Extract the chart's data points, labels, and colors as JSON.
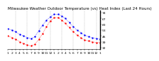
{
  "title": "Milwaukee Weather Outdoor Temperature (vs) Heat Index (Last 24 Hours)",
  "x_labels": [
    "1",
    "2",
    "3",
    "4",
    "5",
    "6",
    "7",
    "8",
    "9",
    "10",
    "11",
    "12",
    "1",
    "2",
    "3",
    "4",
    "5",
    "6",
    "7",
    "8",
    "9",
    "10",
    "11",
    "12",
    "1"
  ],
  "hours": [
    0,
    1,
    2,
    3,
    4,
    5,
    6,
    7,
    8,
    9,
    10,
    11,
    12,
    13,
    14,
    15,
    16,
    17,
    18,
    19,
    20,
    21,
    22,
    23,
    24
  ],
  "temp": [
    55,
    53,
    51,
    48,
    46,
    44,
    43,
    45,
    52,
    59,
    65,
    69,
    72,
    72,
    70,
    67,
    62,
    57,
    53,
    50,
    47,
    45,
    44,
    43,
    42
  ],
  "heat_index": [
    46,
    44,
    42,
    39,
    37,
    35,
    34,
    36,
    42,
    49,
    57,
    64,
    68,
    68,
    65,
    61,
    56,
    51,
    47,
    44,
    41,
    40,
    39,
    38,
    38
  ],
  "temp_color": "#0000ff",
  "heat_color": "#ff0000",
  "ylim": [
    30,
    77
  ],
  "yticks": [
    32,
    39,
    46,
    53,
    60,
    67,
    74
  ],
  "ytick_labels": [
    "32",
    "39",
    "46",
    "53",
    "60",
    "67",
    "74"
  ],
  "background": "#ffffff",
  "grid_color": "#999999",
  "title_fontsize": 4.0,
  "tick_fontsize": 3.2,
  "line_width": 0.5,
  "marker_size": 1.5
}
